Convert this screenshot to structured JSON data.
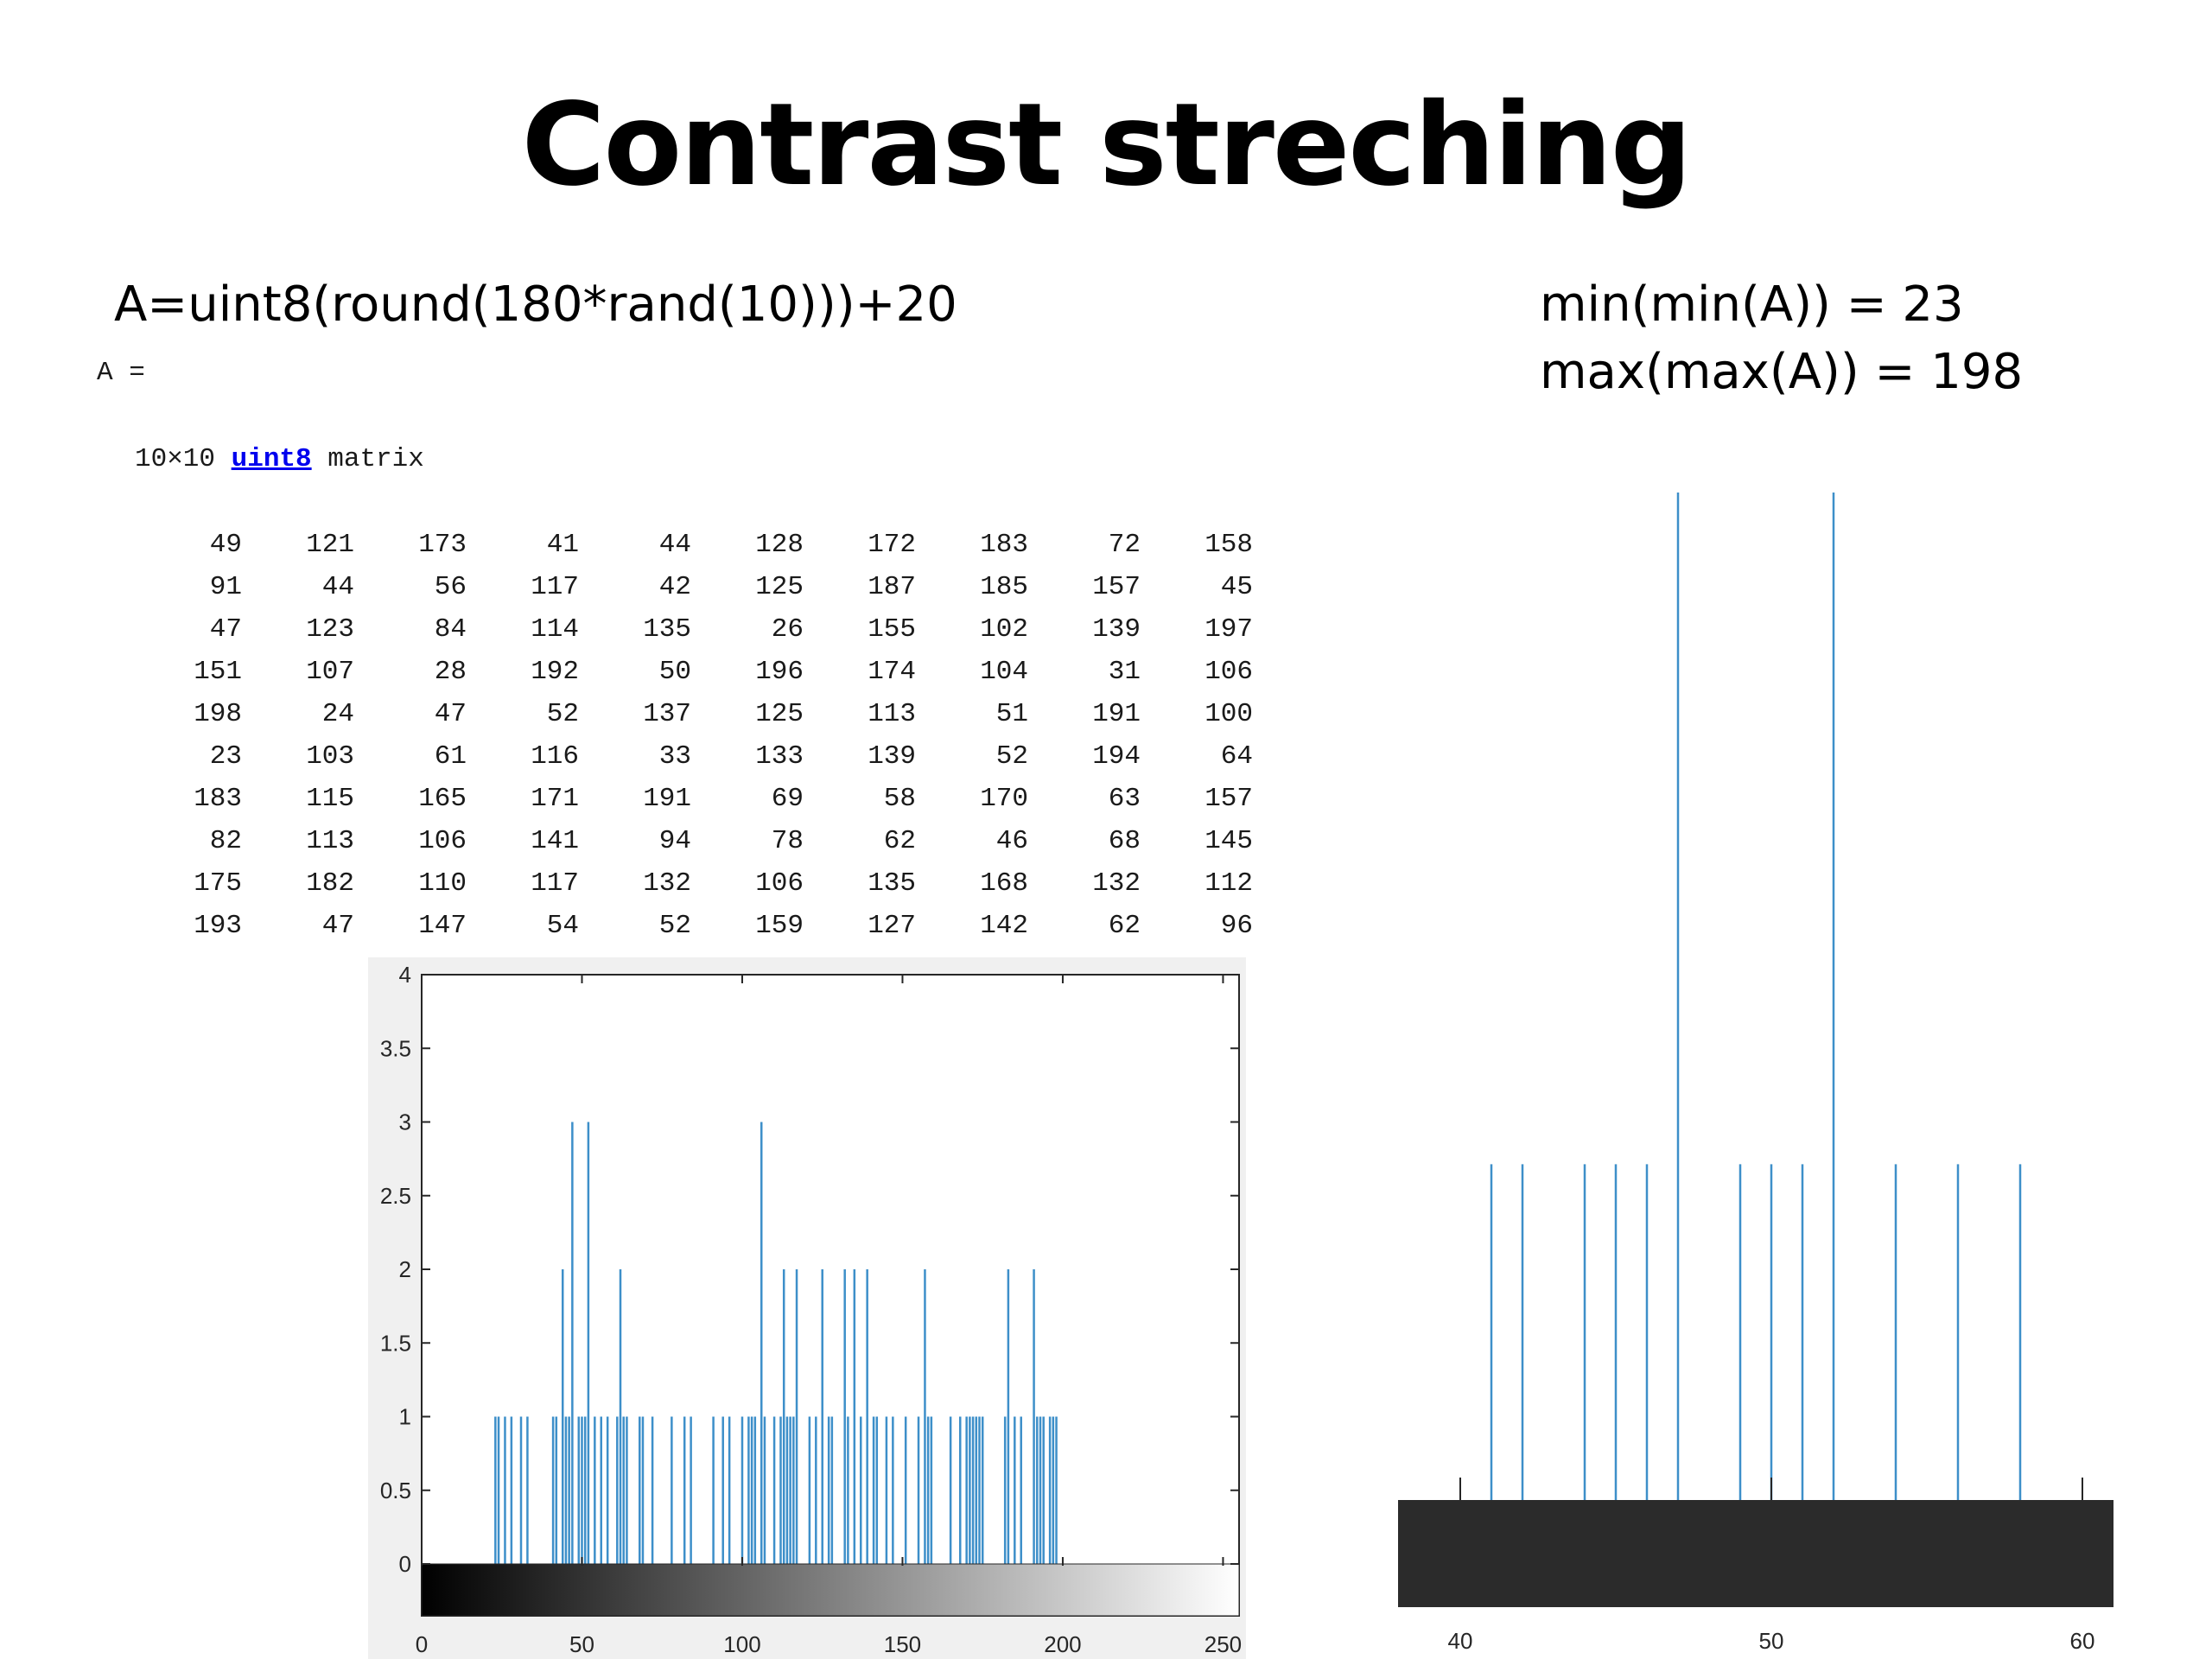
{
  "slide": {
    "title": "Contrast streching",
    "code_line": "A=uint8(round(180*rand(10)))+20",
    "stats": [
      "min(min(A)) = 23",
      "max(max(A)) = 198"
    ]
  },
  "console": {
    "var_label": "A =",
    "size_prefix": "10×10",
    "size_link": "uint8",
    "size_suffix": "matrix",
    "matrix": [
      [
        49,
        121,
        173,
        41,
        44,
        128,
        172,
        183,
        72,
        158
      ],
      [
        91,
        44,
        56,
        117,
        42,
        125,
        187,
        185,
        157,
        45
      ],
      [
        47,
        123,
        84,
        114,
        135,
        26,
        155,
        102,
        139,
        197
      ],
      [
        151,
        107,
        28,
        192,
        50,
        196,
        174,
        104,
        31,
        106
      ],
      [
        198,
        24,
        47,
        52,
        137,
        125,
        113,
        51,
        191,
        100
      ],
      [
        23,
        103,
        61,
        116,
        33,
        133,
        139,
        52,
        194,
        64
      ],
      [
        183,
        115,
        165,
        171,
        191,
        69,
        58,
        170,
        63,
        157
      ],
      [
        82,
        113,
        106,
        141,
        94,
        78,
        62,
        46,
        68,
        145
      ],
      [
        175,
        182,
        110,
        117,
        132,
        106,
        135,
        168,
        132,
        112
      ],
      [
        193,
        47,
        147,
        54,
        52,
        159,
        127,
        142,
        62,
        96
      ]
    ]
  },
  "chart_data": [
    {
      "type": "bar",
      "xlim": [
        0,
        255
      ],
      "ylim": [
        0,
        4
      ],
      "x_ticks": [
        "0",
        "50",
        "100",
        "150",
        "200",
        "250"
      ],
      "y_ticks": [
        "0",
        "0.5",
        "1",
        "1.5",
        "2",
        "2.5",
        "3",
        "3.5",
        "4"
      ],
      "colorbar": "grayscale 0-255",
      "bar_color": "#3d8fc9",
      "x": [
        23,
        24,
        26,
        28,
        31,
        33,
        41,
        42,
        44,
        45,
        46,
        47,
        49,
        50,
        51,
        52,
        54,
        56,
        58,
        61,
        62,
        63,
        64,
        68,
        69,
        72,
        78,
        82,
        84,
        91,
        94,
        96,
        100,
        102,
        103,
        104,
        106,
        107,
        110,
        112,
        113,
        114,
        115,
        116,
        117,
        121,
        123,
        125,
        127,
        128,
        132,
        133,
        135,
        137,
        139,
        141,
        142,
        145,
        147,
        151,
        155,
        157,
        158,
        159,
        165,
        168,
        170,
        171,
        172,
        173,
        174,
        175,
        182,
        183,
        185,
        187,
        191,
        192,
        193,
        194,
        196,
        197,
        198
      ],
      "values": [
        1,
        1,
        1,
        1,
        1,
        1,
        1,
        1,
        2,
        1,
        1,
        3,
        1,
        1,
        1,
        3,
        1,
        1,
        1,
        1,
        2,
        1,
        1,
        1,
        1,
        1,
        1,
        1,
        1,
        1,
        1,
        1,
        1,
        1,
        1,
        1,
        3,
        1,
        1,
        1,
        2,
        1,
        1,
        1,
        2,
        1,
        1,
        2,
        1,
        1,
        2,
        1,
        2,
        1,
        2,
        1,
        1,
        1,
        1,
        1,
        1,
        2,
        1,
        1,
        1,
        1,
        1,
        1,
        1,
        1,
        1,
        1,
        1,
        2,
        1,
        1,
        2,
        1,
        1,
        1,
        1,
        1,
        1
      ]
    },
    {
      "type": "bar",
      "xlim": [
        38,
        61
      ],
      "x_ticks": [
        "40",
        "50",
        "60"
      ],
      "colorbar": "dark gray",
      "bar_color": "#3d8fc9",
      "x": [
        41,
        42,
        44,
        45,
        46,
        47,
        49,
        50,
        51,
        52,
        54,
        56,
        58
      ],
      "values": [
        1,
        1,
        1,
        1,
        1,
        3,
        1,
        1,
        1,
        3,
        1,
        1,
        1
      ]
    }
  ]
}
